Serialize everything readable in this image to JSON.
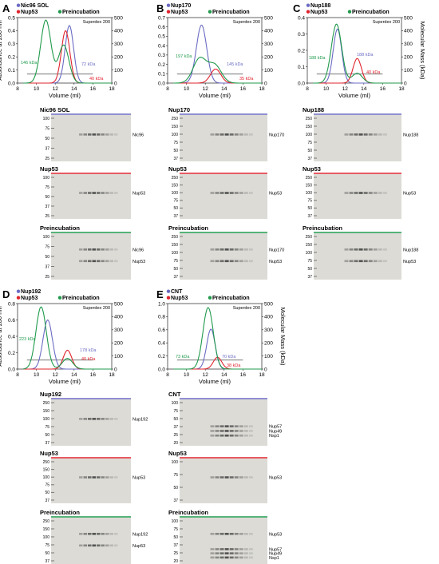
{
  "figure": {
    "panels": [
      {
        "id": "A",
        "letter": "A",
        "legend": [
          "Nic96 SOL",
          "Nup53",
          "Preincubation"
        ],
        "column": "Superdex 200",
        "left_axis": {
          "max": 0.5,
          "ticks": [
            "0.0",
            "0.1",
            "0.2",
            "0.3",
            "0.4",
            "0.5"
          ]
        },
        "annotations": [
          {
            "text": "146 kDa",
            "color": "green"
          },
          {
            "text": "72 kDa",
            "color": "blue"
          },
          {
            "text": "40 kDa",
            "color": "red"
          }
        ],
        "gels": [
          {
            "title": "Nic96 SOL",
            "color": "blue",
            "mw": [
              "100",
              "75",
              "50",
              "37",
              "25"
            ],
            "bands": [
              "Nic96"
            ]
          },
          {
            "title": "Nup53",
            "color": "red",
            "mw": [
              "100",
              "75",
              "50",
              "37",
              "25"
            ],
            "bands": [
              "Nup53"
            ]
          },
          {
            "title": "Preincubation",
            "color": "green",
            "mw": [
              "100",
              "75",
              "50",
              "37",
              "25"
            ],
            "bands": [
              "Nic96",
              "Nup53"
            ]
          }
        ]
      },
      {
        "id": "B",
        "letter": "B",
        "legend": [
          "Nup170",
          "Nup53",
          "Preincubation"
        ],
        "column": "Superdex 200",
        "left_axis": {
          "max": 0.7,
          "ticks": [
            "0.0",
            "0.1",
            "0.2",
            "0.3",
            "0.4",
            "0.5",
            "0.6",
            "0.7"
          ]
        },
        "annotations": [
          {
            "text": "197 kDa",
            "color": "green"
          },
          {
            "text": "145 kDa",
            "color": "blue"
          },
          {
            "text": "35 kDa",
            "color": "red"
          }
        ],
        "gels": [
          {
            "title": "Nup170",
            "color": "blue",
            "mw": [
              "250",
              "150",
              "100",
              "75",
              "50",
              "37"
            ],
            "bands": [
              "Nup170"
            ]
          },
          {
            "title": "Nup53",
            "color": "red",
            "mw": [
              "250",
              "150",
              "100",
              "75",
              "50",
              "37"
            ],
            "bands": [
              "Nup53"
            ]
          },
          {
            "title": "Preincubation",
            "color": "green",
            "mw": [
              "250",
              "150",
              "100",
              "75",
              "50",
              "37"
            ],
            "bands": [
              "Nup170",
              "Nup53"
            ]
          }
        ]
      },
      {
        "id": "C",
        "letter": "C",
        "legend": [
          "Nup188",
          "Nup53",
          "Preincubation"
        ],
        "column": "Superdex 200",
        "left_axis": {
          "max": 0.4,
          "ticks": [
            "0.0",
            "0.1",
            "0.2",
            "0.3",
            "0.4"
          ]
        },
        "annotations": [
          {
            "text": "188 kDa",
            "color": "green"
          },
          {
            "text": "188 kDa",
            "color": "blue"
          },
          {
            "text": "40 kDa",
            "color": "red"
          }
        ],
        "gels": [
          {
            "title": "Nup188",
            "color": "blue",
            "mw": [
              "250",
              "150",
              "100",
              "75",
              "50",
              "37"
            ],
            "bands": [
              "Nup188"
            ]
          },
          {
            "title": "Nup53",
            "color": "red",
            "mw": [
              "250",
              "150",
              "100",
              "75",
              "50",
              "37"
            ],
            "bands": [
              "Nup53"
            ]
          },
          {
            "title": "Preincubation",
            "color": "green",
            "mw": [
              "250",
              "150",
              "100",
              "75",
              "50",
              "37"
            ],
            "bands": [
              "Nup188",
              "Nup53"
            ]
          }
        ]
      },
      {
        "id": "D",
        "letter": "D",
        "legend": [
          "Nup192",
          "Nup53",
          "Preincubation"
        ],
        "column": "Superdex 200",
        "left_axis": {
          "max": 0.8,
          "ticks": [
            "0.0",
            "0.2",
            "0.4",
            "0.6",
            "0.8"
          ]
        },
        "annotations": [
          {
            "text": "223 kDa",
            "color": "green"
          },
          {
            "text": "178 kDa",
            "color": "blue"
          },
          {
            "text": "40 kDa",
            "color": "red"
          }
        ],
        "gels": [
          {
            "title": "Nup192",
            "color": "blue",
            "mw": [
              "250",
              "150",
              "100",
              "75",
              "50",
              "37"
            ],
            "bands": [
              "Nup192"
            ]
          },
          {
            "title": "Nup53",
            "color": "red",
            "mw": [
              "250",
              "150",
              "100",
              "75",
              "50",
              "37"
            ],
            "bands": [
              "Nup53"
            ]
          },
          {
            "title": "Preincubation",
            "color": "green",
            "mw": [
              "250",
              "150",
              "100",
              "75",
              "50",
              "37"
            ],
            "bands": [
              "Nup192",
              "Nup53"
            ]
          }
        ]
      },
      {
        "id": "E",
        "letter": "E",
        "legend": [
          "CNT",
          "Nup53",
          "Preincubation"
        ],
        "column": "Superdex 200",
        "left_axis": {
          "max": 1.0,
          "ticks": [
            "0.0",
            "0.2",
            "0.4",
            "0.6",
            "0.8",
            "1.0"
          ]
        },
        "annotations": [
          {
            "text": "73 kDa",
            "color": "green"
          },
          {
            "text": "70 kDa",
            "color": "blue"
          },
          {
            "text": "38 kDa",
            "color": "red"
          }
        ],
        "gels": [
          {
            "title": "CNT",
            "color": "blue",
            "mw": [
              "100",
              "75",
              "50",
              "37",
              "25",
              "20"
            ],
            "bands": [
              "Nup57",
              "Nup49",
              "Nsp1"
            ]
          },
          {
            "title": "Nup53",
            "color": "red",
            "mw": [
              "100",
              "75",
              "50",
              "37"
            ],
            "bands": [
              "Nup53"
            ]
          },
          {
            "title": "Preincubation",
            "color": "green",
            "mw": [
              "100",
              "75",
              "50",
              "37",
              "25",
              "20"
            ],
            "bands": [
              "Nup53",
              "Nup57",
              "Nup49",
              "Nsp1"
            ]
          }
        ]
      }
    ],
    "axis_labels": {
      "y_left": "Absorbance at 280 nm",
      "y_right": "Molecular Mass (kDa)",
      "x": "Volume (ml)"
    },
    "x_ticks": [
      "8",
      "10",
      "12",
      "14",
      "16",
      "18"
    ],
    "right_ticks": [
      "0",
      "100",
      "200",
      "300",
      "400",
      "500"
    ]
  },
  "colors": {
    "blue": "#6b6bc4",
    "red": "#e0242e",
    "green": "#1f9a4b",
    "grey": "#9a9a9a"
  },
  "chart_data": [
    {
      "panel": "A",
      "type": "line",
      "xlabel": "Volume (ml)",
      "ylabel": "Absorbance at 280 nm",
      "y2label": "Molecular Mass (kDa)",
      "xlim": [
        8,
        18
      ],
      "ylim": [
        0,
        0.5
      ],
      "y2lim": [
        0,
        500
      ],
      "series": [
        {
          "name": "Nic96 SOL",
          "peaks": [
            [
              13.5,
              0.44
            ]
          ]
        },
        {
          "name": "Nup53",
          "peaks": [
            [
              13.1,
              0.4
            ]
          ]
        },
        {
          "name": "Preincubation",
          "peaks": [
            [
              11.0,
              0.48
            ],
            [
              12.9,
              0.29
            ]
          ]
        }
      ]
    },
    {
      "panel": "B",
      "type": "line",
      "xlabel": "Volume (ml)",
      "ylabel": "Absorbance at 280 nm",
      "y2label": "Molecular Mass (kDa)",
      "xlim": [
        8,
        18
      ],
      "ylim": [
        0,
        0.7
      ],
      "y2lim": [
        0,
        500
      ],
      "series": [
        {
          "name": "Nup170",
          "peaks": [
            [
              11.6,
              0.62
            ]
          ]
        },
        {
          "name": "Nup53",
          "peaks": [
            [
              13.1,
              0.15
            ]
          ]
        },
        {
          "name": "Preincubation",
          "peaks": [
            [
              11.4,
              0.26
            ],
            [
              13.0,
              0.19
            ]
          ]
        }
      ]
    },
    {
      "panel": "C",
      "type": "line",
      "xlabel": "Volume (ml)",
      "ylabel": "Absorbance at 280 nm",
      "y2label": "Molecular Mass (kDa)",
      "xlim": [
        8,
        18
      ],
      "ylim": [
        0,
        0.4
      ],
      "y2lim": [
        0,
        500
      ],
      "series": [
        {
          "name": "Nup188",
          "peaks": [
            [
              11.2,
              0.33
            ]
          ]
        },
        {
          "name": "Nup53",
          "peaks": [
            [
              13.3,
              0.15
            ]
          ]
        },
        {
          "name": "Preincubation",
          "peaks": [
            [
              11.1,
              0.36
            ],
            [
              13.3,
              0.06
            ]
          ]
        }
      ]
    },
    {
      "panel": "D",
      "type": "line",
      "xlabel": "Volume (ml)",
      "ylabel": "Absorbance at 280 nm",
      "y2label": "Molecular Mass (kDa)",
      "xlim": [
        8,
        18
      ],
      "ylim": [
        0,
        0.8
      ],
      "y2lim": [
        0,
        500
      ],
      "series": [
        {
          "name": "Nup192",
          "peaks": [
            [
              11.2,
              0.6
            ]
          ]
        },
        {
          "name": "Nup53",
          "peaks": [
            [
              13.3,
              0.23
            ]
          ]
        },
        {
          "name": "Preincubation",
          "peaks": [
            [
              10.5,
              0.76
            ],
            [
              13.3,
              0.13
            ]
          ]
        }
      ]
    },
    {
      "panel": "E",
      "type": "line",
      "xlabel": "Volume (ml)",
      "ylabel": "Absorbance at 280 nm",
      "y2label": "Molecular Mass (kDa)",
      "xlim": [
        8,
        18
      ],
      "ylim": [
        0,
        1.0
      ],
      "y2lim": [
        0,
        500
      ],
      "series": [
        {
          "name": "CNT",
          "peaks": [
            [
              12.6,
              0.61
            ]
          ]
        },
        {
          "name": "Nup53",
          "peaks": [
            [
              13.3,
              0.18
            ]
          ]
        },
        {
          "name": "Preincubation",
          "peaks": [
            [
              12.3,
              0.94
            ]
          ]
        }
      ]
    }
  ]
}
